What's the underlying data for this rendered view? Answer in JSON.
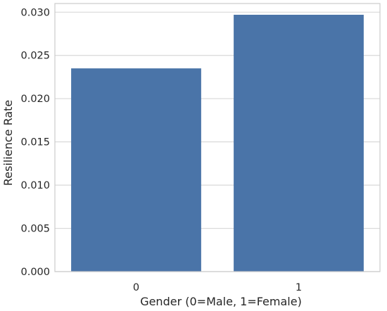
{
  "chart_data": {
    "type": "bar",
    "title": "",
    "categories": [
      "0",
      "1"
    ],
    "values": [
      0.0235,
      0.0297
    ],
    "xlabel": "Gender (0=Male, 1=Female)",
    "ylabel": "Resilience Rate",
    "ylim": [
      0,
      0.031
    ],
    "yticks": [
      "0.000",
      "0.005",
      "0.010",
      "0.015",
      "0.020",
      "0.025",
      "0.030"
    ],
    "grid": true,
    "bar_color": "#4a74a8",
    "grid_color": "#d9d9d9",
    "frame_color": "#cccccc"
  }
}
